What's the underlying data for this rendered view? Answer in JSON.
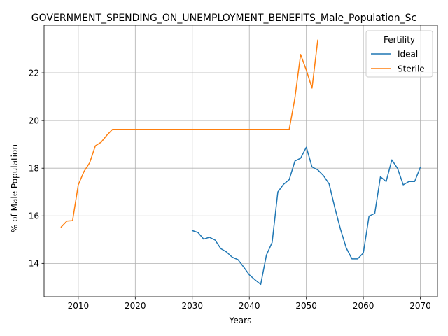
{
  "chart_data": {
    "type": "line",
    "title": "GOVERNMENT_SPENDING_ON_UNEMPLOYMENT_BENEFITS_Male_Population_Sc",
    "xlabel": "Years",
    "ylabel": "% of Male Population",
    "xlim": [
      2004,
      2073
    ],
    "ylim": [
      12.6,
      24.0
    ],
    "xticks": [
      2010,
      2020,
      2030,
      2040,
      2050,
      2060,
      2070
    ],
    "yticks": [
      14,
      16,
      18,
      20,
      22
    ],
    "grid": true,
    "legend": {
      "title": "Fertility",
      "position": "top-right"
    },
    "series": [
      {
        "name": "Ideal",
        "color": "#1f77b4",
        "x": [
          2030,
          2031,
          2032,
          2033,
          2034,
          2035,
          2036,
          2037,
          2038,
          2039,
          2040,
          2041,
          2042,
          2043,
          2044,
          2045,
          2046,
          2047,
          2048,
          2049,
          2050,
          2051,
          2052,
          2053,
          2054,
          2055,
          2056,
          2057,
          2058,
          2059,
          2060,
          2061,
          2062,
          2063,
          2064,
          2065,
          2066,
          2067,
          2068,
          2069,
          2070
        ],
        "y": [
          15.38,
          15.3,
          15.02,
          15.1,
          14.98,
          14.62,
          14.48,
          14.26,
          14.16,
          13.85,
          13.52,
          13.31,
          13.12,
          14.35,
          14.88,
          17.0,
          17.32,
          17.52,
          18.3,
          18.42,
          18.88,
          18.05,
          17.93,
          17.69,
          17.34,
          16.34,
          15.43,
          14.65,
          14.19,
          14.19,
          14.44,
          15.99,
          16.1,
          17.64,
          17.44,
          18.35,
          17.99,
          17.3,
          17.44,
          17.44,
          18.04
        ]
      },
      {
        "name": "Sterile",
        "color": "#ff7f0e",
        "x": [
          2007,
          2008,
          2009,
          2010,
          2011,
          2012,
          2013,
          2014,
          2015,
          2016,
          2017,
          2018,
          2019,
          2020,
          2021,
          2022,
          2023,
          2024,
          2025,
          2026,
          2027,
          2028,
          2029,
          2030,
          2031,
          2032,
          2033,
          2034,
          2035,
          2036,
          2037,
          2038,
          2039,
          2040,
          2041,
          2042,
          2043,
          2044,
          2045,
          2046,
          2047,
          2048,
          2049,
          2050,
          2051,
          2052
        ],
        "y": [
          15.53,
          15.78,
          15.8,
          17.3,
          17.86,
          18.23,
          18.94,
          19.09,
          19.38,
          19.63,
          19.63,
          19.63,
          19.63,
          19.63,
          19.63,
          19.63,
          19.63,
          19.63,
          19.63,
          19.63,
          19.63,
          19.63,
          19.63,
          19.63,
          19.63,
          19.63,
          19.63,
          19.63,
          19.63,
          19.63,
          19.63,
          19.63,
          19.63,
          19.63,
          19.63,
          19.63,
          19.63,
          19.63,
          19.63,
          19.63,
          19.63,
          20.95,
          22.77,
          22.11,
          21.36,
          23.37
        ]
      }
    ]
  }
}
